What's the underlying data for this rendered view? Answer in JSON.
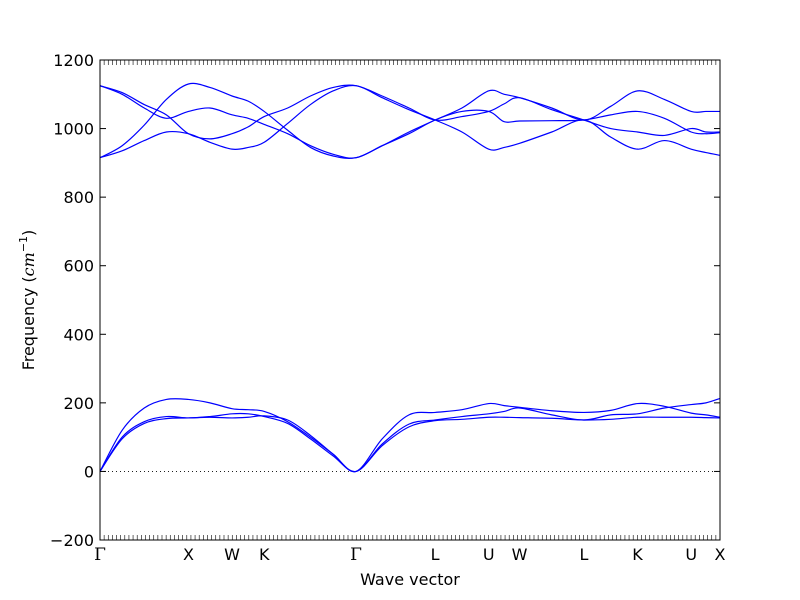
{
  "chart_data": {
    "type": "line",
    "title": "",
    "xlabel": "Wave vector",
    "ylabel": "Frequency (cm⁻¹)",
    "ylabel_parts": {
      "text": "Frequency",
      "unit": "cm",
      "exponent": "−1"
    },
    "ylim": [
      -200,
      1200
    ],
    "xlim": [
      0,
      9.25
    ],
    "yticks": [
      -200,
      0,
      200,
      400,
      600,
      800,
      1000,
      1200
    ],
    "ytick_labels": [
      "−200",
      "0",
      "200",
      "400",
      "600",
      "800",
      "1000",
      "1200"
    ],
    "xticks": [
      {
        "label": "Γ",
        "x": 0
      },
      {
        "label": "X",
        "x": 1.32
      },
      {
        "label": "W",
        "x": 1.97
      },
      {
        "label": "K",
        "x": 2.45
      },
      {
        "label": "Γ",
        "x": 3.82
      },
      {
        "label": "L",
        "x": 5.0
      },
      {
        "label": "U",
        "x": 5.8
      },
      {
        "label": "W",
        "x": 6.26
      },
      {
        "label": "L",
        "x": 7.22
      },
      {
        "label": "K",
        "x": 8.02
      },
      {
        "label": "U",
        "x": 8.82
      },
      {
        "label": "X",
        "x": 9.25
      }
    ],
    "zero_line": {
      "y": 0,
      "style": "dotted"
    },
    "grid": false,
    "legend": "none",
    "color": "#0000ff",
    "series": [
      {
        "x": [
          0,
          0.33,
          0.66,
          0.99,
          1.32,
          1.64,
          1.97,
          2.21,
          2.45,
          2.8,
          3.14,
          3.48,
          3.82,
          4.21,
          4.61,
          5.0,
          5.4,
          5.8,
          6.03,
          6.26,
          6.74,
          7.22,
          7.62,
          8.02,
          8.42,
          8.82,
          9.04,
          9.25
        ],
        "values": [
          0,
          100,
          145,
          160,
          156,
          160,
          168,
          168,
          160,
          140,
          95,
          45,
          0,
          75,
          130,
          148,
          152,
          158,
          158,
          157,
          155,
          150,
          152,
          158,
          158,
          158,
          157,
          156
        ]
      },
      {
        "x": [
          0,
          0.33,
          0.66,
          0.99,
          1.32,
          1.64,
          1.97,
          2.21,
          2.45,
          2.8,
          3.14,
          3.48,
          3.82,
          4.21,
          4.61,
          5.0,
          5.4,
          5.8,
          6.03,
          6.26,
          6.74,
          7.22,
          7.62,
          8.02,
          8.42,
          8.82,
          9.04,
          9.25
        ],
        "values": [
          0,
          95,
          140,
          154,
          156,
          158,
          156,
          158,
          162,
          150,
          105,
          50,
          0,
          80,
          138,
          150,
          160,
          168,
          175,
          185,
          165,
          150,
          165,
          168,
          185,
          195,
          200,
          213
        ]
      },
      {
        "x": [
          0,
          0.33,
          0.66,
          0.99,
          1.32,
          1.64,
          1.97,
          2.21,
          2.45,
          2.8,
          3.14,
          3.48,
          3.82,
          4.21,
          4.61,
          5.0,
          5.4,
          5.8,
          6.03,
          6.26,
          6.74,
          7.22,
          7.62,
          8.02,
          8.42,
          8.82,
          9.04,
          9.25
        ],
        "values": [
          0,
          120,
          185,
          210,
          210,
          200,
          183,
          180,
          175,
          145,
          100,
          50,
          0,
          95,
          165,
          172,
          180,
          198,
          192,
          187,
          177,
          172,
          178,
          198,
          190,
          170,
          165,
          158
        ]
      },
      {
        "x": [
          0,
          0.33,
          0.66,
          0.99,
          1.32,
          1.64,
          1.97,
          2.21,
          2.45,
          2.8,
          3.14,
          3.48,
          3.82,
          4.21,
          4.61,
          5.0,
          5.4,
          5.8,
          6.03,
          6.26,
          6.74,
          7.22,
          7.62,
          8.02,
          8.42,
          8.82,
          9.04,
          9.25
        ],
        "values": [
          915,
          950,
          1010,
          1085,
          1130,
          1120,
          1095,
          1080,
          1050,
          995,
          945,
          920,
          915,
          950,
          990,
          1025,
          1060,
          1110,
          1100,
          1090,
          1060,
          1025,
          1065,
          1110,
          1085,
          1050,
          1050,
          1050
        ]
      },
      {
        "x": [
          0,
          0.33,
          0.66,
          0.99,
          1.32,
          1.64,
          1.97,
          2.21,
          2.45,
          2.8,
          3.14,
          3.48,
          3.82,
          4.21,
          4.61,
          5.0,
          5.4,
          5.8,
          6.03,
          6.26,
          6.74,
          7.22,
          7.62,
          8.02,
          8.42,
          8.82,
          9.04,
          9.25
        ],
        "values": [
          1125,
          1105,
          1070,
          1040,
          985,
          970,
          985,
          1005,
          1035,
          1060,
          1095,
          1120,
          1125,
          1095,
          1060,
          1025,
          1035,
          1050,
          1072,
          1090,
          1055,
          1025,
          1000,
          990,
          980,
          1000,
          990,
          990
        ]
      },
      {
        "x": [
          0,
          0.33,
          0.66,
          0.99,
          1.32,
          1.64,
          1.97,
          2.21,
          2.45,
          2.8,
          3.14,
          3.48,
          3.82,
          4.21,
          4.61,
          5.0,
          5.4,
          5.8,
          6.03,
          6.26,
          6.74,
          7.22,
          7.62,
          8.02,
          8.42,
          8.82,
          9.04,
          9.25
        ],
        "values": [
          1125,
          1100,
          1060,
          1030,
          1050,
          1060,
          1040,
          1030,
          1012,
          985,
          950,
          925,
          915,
          950,
          985,
          1025,
          1050,
          1050,
          1020,
          1022,
          1023,
          1025,
          1040,
          1050,
          1030,
          990,
          985,
          988
        ]
      },
      {
        "x": [
          0,
          0.33,
          0.66,
          0.99,
          1.32,
          1.64,
          1.97,
          2.21,
          2.45,
          2.8,
          3.14,
          3.48,
          3.82,
          4.21,
          4.61,
          5.0,
          5.4,
          5.8,
          6.03,
          6.26,
          6.74,
          7.22,
          7.62,
          8.02,
          8.42,
          8.82,
          9.04,
          9.25
        ],
        "values": [
          915,
          935,
          965,
          990,
          985,
          960,
          940,
          945,
          960,
          1015,
          1070,
          1110,
          1125,
          1090,
          1055,
          1025,
          990,
          940,
          945,
          957,
          990,
          1025,
          975,
          940,
          965,
          940,
          930,
          922
        ]
      }
    ]
  }
}
